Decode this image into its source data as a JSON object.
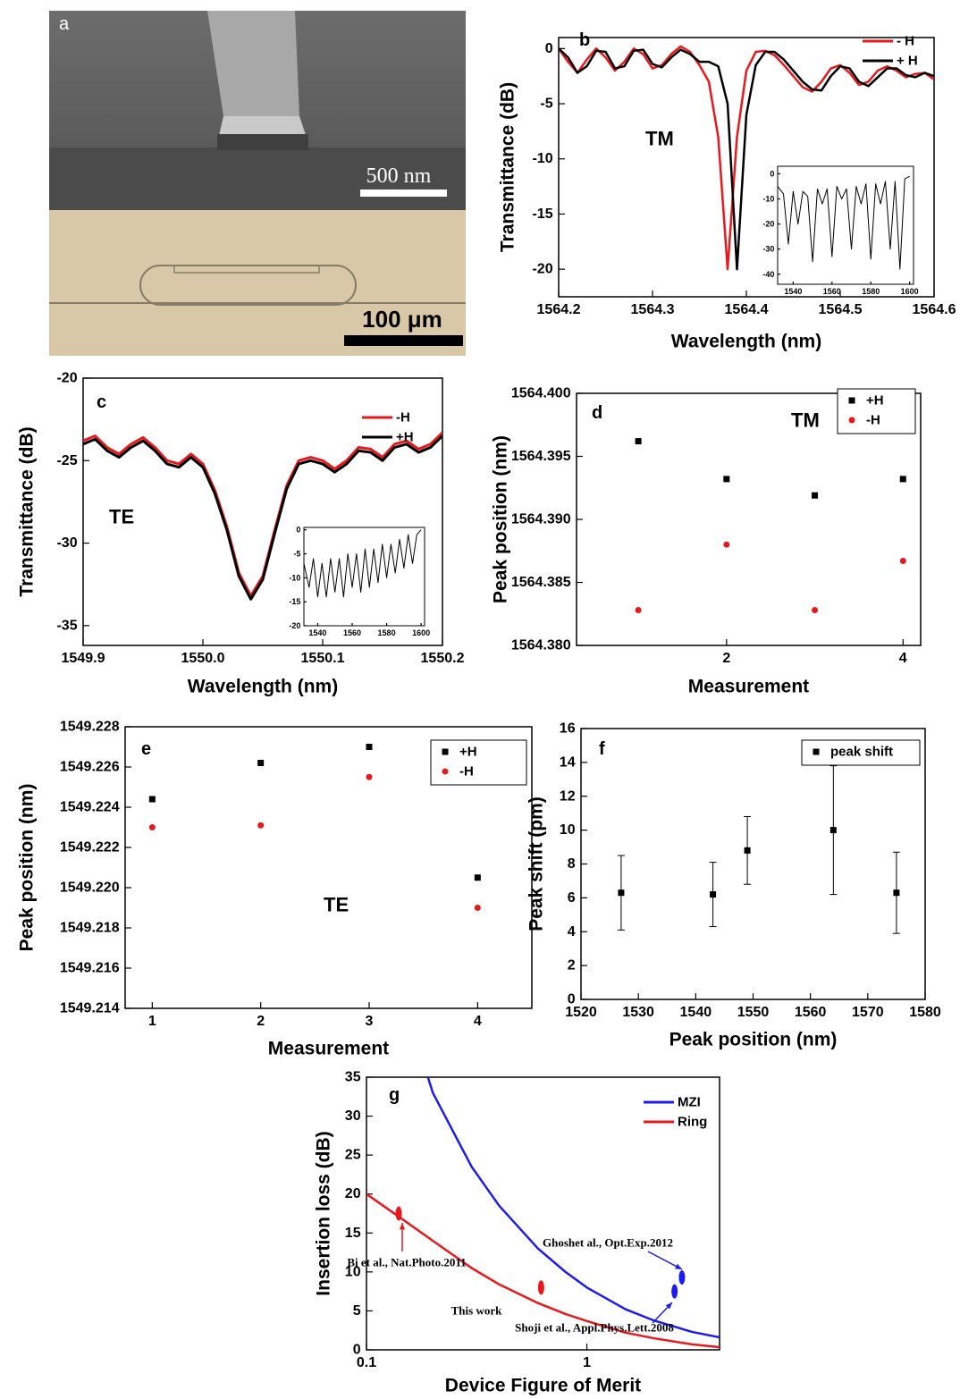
{
  "panel_a": {
    "panel_label": "a",
    "scale_bar_top": "500 nm",
    "scale_bar_bottom": "100 μm"
  },
  "chart_data": [
    {
      "type": "line",
      "panel_label": "b",
      "annotation": "TM",
      "x_label": "Wavelength (nm)",
      "y_label": "Transmittance (dB)",
      "xlim": [
        1564.2,
        1564.6
      ],
      "xticks": [
        1564.2,
        1564.3,
        1564.4,
        1564.5,
        1564.6
      ],
      "ylim": [
        -22.5,
        1
      ],
      "yticks": [
        0,
        -5,
        -10,
        -15,
        -20
      ],
      "legend": "top-right",
      "x": [
        1564.2,
        1564.21,
        1564.22,
        1564.23,
        1564.24,
        1564.25,
        1564.26,
        1564.27,
        1564.28,
        1564.29,
        1564.3,
        1564.31,
        1564.32,
        1564.33,
        1564.34,
        1564.35,
        1564.36,
        1564.37,
        1564.38,
        1564.39,
        1564.4,
        1564.41,
        1564.42,
        1564.43,
        1564.44,
        1564.45,
        1564.46,
        1564.47,
        1564.48,
        1564.49,
        1564.5,
        1564.51,
        1564.52,
        1564.53,
        1564.54,
        1564.55,
        1564.56,
        1564.57,
        1564.58,
        1564.59,
        1564.6
      ],
      "series": [
        {
          "name": "- H",
          "color": "#e8191c",
          "values": [
            0,
            -1.2,
            -2.2,
            -1,
            0,
            -0.8,
            -2,
            -1.2,
            0,
            -0.5,
            -1.8,
            -1.5,
            -0.5,
            0.2,
            -0.3,
            -1.5,
            -3,
            -8,
            -20,
            -8,
            -2,
            -0.3,
            -0.2,
            -0.6,
            -1.5,
            -2.5,
            -3.5,
            -3.9,
            -3,
            -1.8,
            -1.5,
            -2.2,
            -3.3,
            -3,
            -2,
            -1.6,
            -2,
            -2.6,
            -2.3,
            -2.2,
            -2.8
          ]
        },
        {
          "name": "+ H",
          "color": "#000000",
          "values": [
            0,
            -0.8,
            -2.2,
            -1.6,
            -0.2,
            -0.3,
            -1.8,
            -1.6,
            -0.2,
            -0.1,
            -1.4,
            -1.7,
            -0.8,
            -0.1,
            -0.5,
            -1.2,
            -1.2,
            -1.6,
            -5,
            -20,
            -6,
            -1.5,
            -0.3,
            -0.3,
            -1,
            -2,
            -3,
            -3.7,
            -3.8,
            -2.5,
            -1.6,
            -1.8,
            -3,
            -3.4,
            -2.6,
            -1.8,
            -1.8,
            -2.4,
            -2.6,
            -2.2,
            -2.5
          ]
        }
      ],
      "inset": {
        "xlim": [
          1532,
          1602
        ],
        "xticks": [
          1540,
          1560,
          1580,
          1600
        ],
        "ylim": [
          -44,
          3
        ],
        "yticks": [
          0,
          -10,
          -20,
          -30,
          -40
        ],
        "series": [
          {
            "color": "#000000",
            "x": [
              1532,
              1535,
              1537.5,
              1540,
              1542.5,
              1545,
              1547.5,
              1550,
              1552.5,
              1555,
              1557.5,
              1560,
              1562.5,
              1565,
              1567.5,
              1570,
              1572.5,
              1575,
              1577.5,
              1580,
              1582.5,
              1585,
              1587.5,
              1590,
              1592.5,
              1595,
              1597.5,
              1600
            ],
            "values": [
              -5,
              -8,
              -28,
              -7,
              -20,
              -7,
              -9,
              -35,
              -6,
              -12,
              -6,
              -33,
              -5,
              -10,
              -6,
              -30,
              -5,
              -12,
              -4,
              -34,
              -4,
              -12,
              -3,
              -30,
              -3,
              -38,
              -2,
              -1
            ]
          }
        ]
      }
    },
    {
      "type": "line",
      "panel_label": "c",
      "annotation": "TE",
      "x_label": "Wavelength (nm)",
      "y_label": "Transmittance (dB)",
      "xlim": [
        1549.9,
        1550.2
      ],
      "xticks": [
        1549.9,
        {
          "value": 1550,
          "label": "1550.0"
        },
        1550.1,
        1550.2
      ],
      "ylim": [
        -36.2,
        -20
      ],
      "yticks": [
        -20,
        -25,
        -30,
        -35
      ],
      "legend": "top-right",
      "x": [
        1549.9,
        1549.91,
        1549.92,
        1549.93,
        1549.94,
        1549.95,
        1549.96,
        1549.97,
        1549.98,
        1549.99,
        1550,
        1550.01,
        1550.02,
        1550.03,
        1550.04,
        1550.05,
        1550.06,
        1550.07,
        1550.08,
        1550.09,
        1550.1,
        1550.11,
        1550.12,
        1550.13,
        1550.14,
        1550.15,
        1550.16,
        1550.17,
        1550.18,
        1550.19,
        1550.2
      ],
      "series": [
        {
          "name": "-H",
          "color": "#e8191c",
          "values": [
            -23.8,
            -23.5,
            -24.2,
            -24.6,
            -24,
            -23.6,
            -24.2,
            -25,
            -25.2,
            -24.6,
            -25.2,
            -26.8,
            -29,
            -31.8,
            -33.2,
            -32,
            -29.2,
            -26.5,
            -25,
            -24.8,
            -25,
            -25.5,
            -25,
            -24.2,
            -24.3,
            -24.8,
            -24,
            -23.8,
            -24.3,
            -24,
            -23.3
          ]
        },
        {
          "name": "+H",
          "color": "#000000",
          "values": [
            -24,
            -23.7,
            -24.4,
            -24.8,
            -24.2,
            -23.8,
            -24.4,
            -25.2,
            -25.4,
            -24.8,
            -25.4,
            -27,
            -29.2,
            -32,
            -33.4,
            -32.2,
            -29.4,
            -26.7,
            -25.2,
            -25,
            -25.2,
            -25.7,
            -25.2,
            -24.4,
            -24.5,
            -25,
            -24.2,
            -24,
            -24.5,
            -24.2,
            -23.5
          ]
        }
      ],
      "inset": {
        "xlim": [
          1532,
          1602
        ],
        "xticks": [
          1540,
          1560,
          1580,
          1600
        ],
        "ylim": [
          -20,
          0.5
        ],
        "yticks": [
          0,
          -5,
          -10,
          -15,
          -20
        ],
        "series": [
          {
            "color": "#000000",
            "x": [
              1532,
              1535,
              1537.5,
              1540,
              1542.5,
              1545,
              1547.5,
              1550,
              1552.5,
              1555,
              1557.5,
              1560,
              1562.5,
              1565,
              1567.5,
              1570,
              1572.5,
              1575,
              1577.5,
              1580,
              1582.5,
              1585,
              1587.5,
              1590,
              1592.5,
              1595,
              1597.5,
              1600
            ],
            "values": [
              -7,
              -12,
              -6,
              -14,
              -7,
              -14,
              -6,
              -13,
              -6,
              -14,
              -5,
              -12,
              -5,
              -13,
              -4,
              -12,
              -4,
              -11,
              -3,
              -10,
              -3,
              -9,
              -2,
              -8,
              -1,
              -7,
              -1,
              0
            ]
          }
        ]
      }
    },
    {
      "type": "scatter",
      "panel_label": "d",
      "annotation": "TM",
      "x_label": "Measurement",
      "y_label": "Peak position (nm)",
      "xlim": [
        0.3,
        4.2
      ],
      "xticks": [
        2,
        4
      ],
      "ylim": [
        1564.38,
        1564.4
      ],
      "yticks": [
        {
          "value": 1564.38,
          "label": "1564.380"
        },
        1564.385,
        {
          "value": 1564.39,
          "label": "1564.390"
        },
        1564.395,
        {
          "value": 1564.4,
          "label": "1564.400"
        }
      ],
      "legend": "top-right",
      "x": [
        1,
        2,
        3,
        4
      ],
      "series": [
        {
          "name": "+H",
          "color": "#000000",
          "marker": "square",
          "values": [
            1564.3962,
            1564.3932,
            1564.3919,
            1564.3932
          ]
        },
        {
          "name": "-H",
          "color": "#e8191c",
          "marker": "circle",
          "values": [
            1564.3828,
            1564.388,
            1564.3828,
            1564.3867
          ]
        }
      ]
    },
    {
      "type": "scatter",
      "panel_label": "e",
      "annotation": "TE",
      "x_label": "Measurement",
      "y_label": "Peak position (nm)",
      "xlim": [
        0.75,
        4.5
      ],
      "xticks": [
        1,
        2,
        3,
        4
      ],
      "ylim": [
        1549.214,
        1549.228
      ],
      "yticks": [
        1549.214,
        1549.216,
        1549.218,
        {
          "value": 1549.22,
          "label": "1549.220"
        },
        1549.222,
        1549.224,
        1549.226,
        1549.228
      ],
      "legend": "top-right",
      "x": [
        1,
        2,
        3,
        4
      ],
      "series": [
        {
          "name": "+H",
          "color": "#000000",
          "marker": "square",
          "values": [
            1549.2244,
            1549.2262,
            1549.227,
            1549.2205
          ]
        },
        {
          "name": "-H",
          "color": "#e8191c",
          "marker": "circle",
          "values": [
            1549.223,
            1549.2231,
            1549.2255,
            1549.219
          ]
        }
      ]
    },
    {
      "type": "scatter",
      "panel_label": "f",
      "x_label": "Peak position (nm)",
      "y_label": "Peak shift (pm)",
      "xlim": [
        1520,
        1580
      ],
      "xticks": [
        1520,
        1530,
        1540,
        1550,
        1560,
        1570,
        1580
      ],
      "ylim": [
        0,
        16
      ],
      "yticks": [
        0,
        2,
        4,
        6,
        8,
        10,
        12,
        14,
        16
      ],
      "legend": "top-right",
      "x": [
        1527,
        1543,
        1549,
        1564,
        1575
      ],
      "series": [
        {
          "name": "peak shift",
          "color": "#000000",
          "marker": "square",
          "values": [
            6.3,
            6.2,
            8.8,
            10,
            6.3
          ],
          "errors": [
            2.2,
            1.9,
            2,
            3.8,
            2.4
          ]
        }
      ]
    },
    {
      "type": "line",
      "panel_label": "g",
      "x_label": "Device Figure of Merit",
      "y_label": "Insertion loss (dB)",
      "x_scale": "log",
      "xlim": [
        0.1,
        4
      ],
      "xticks": [
        0.1,
        1
      ],
      "ylim": [
        0,
        35
      ],
      "yticks": [
        0,
        5,
        10,
        15,
        20,
        25,
        30,
        35
      ],
      "legend": "top-right",
      "series": [
        {
          "name": "MZI",
          "color": "#1c1cf0",
          "x": [
            0.19,
            0.2,
            0.3,
            0.4,
            0.6,
            0.8,
            1,
            1.5,
            2,
            3,
            4
          ],
          "values": [
            35,
            33,
            23.5,
            18.5,
            13,
            10,
            8,
            5.2,
            3.8,
            2.3,
            1.6
          ]
        },
        {
          "name": "Ring",
          "color": "#e8191c",
          "x": [
            0.1,
            0.15,
            0.2,
            0.3,
            0.4,
            0.6,
            0.8,
            1,
            1.5,
            2,
            3,
            4
          ],
          "values": [
            20,
            16.5,
            14,
            10.5,
            8.4,
            6,
            4.6,
            3.7,
            2.2,
            1.5,
            0.7,
            0.35
          ]
        }
      ],
      "markers": [
        {
          "name": "Bi et al., Nat.Photo.2011",
          "x": 0.14,
          "y": 17.5,
          "color": "#e8191c"
        },
        {
          "name": "This work",
          "x": 0.62,
          "y": 8,
          "color": "#e8191c"
        },
        {
          "name": "Ghoshet al., Opt.Exp.2012",
          "x": 2.7,
          "y": 9.3,
          "color": "#1c1cf0"
        },
        {
          "name": "Shoji et al., Appl.Phys.Lett.2008",
          "x": 2.5,
          "y": 7.5,
          "color": "#1c1cf0"
        }
      ]
    }
  ]
}
